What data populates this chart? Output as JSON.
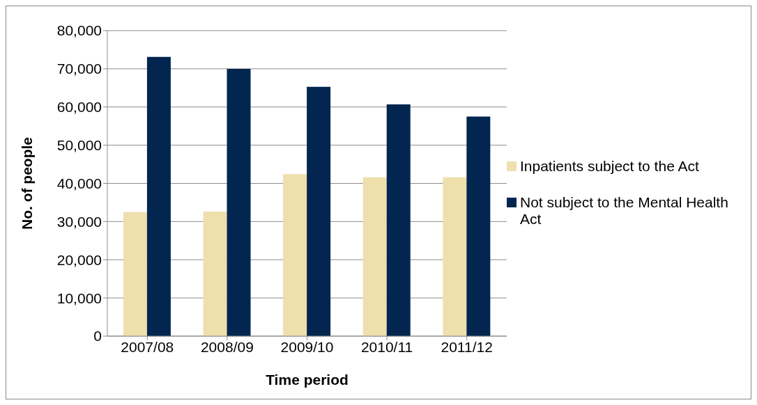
{
  "chart_data": {
    "type": "bar",
    "xlabel": "Time period",
    "ylabel": "No. of people",
    "categories": [
      "2007/08",
      "2008/09",
      "2009/10",
      "2010/11",
      "2011/12"
    ],
    "series": [
      {
        "name": "Inpatients subject to the Act",
        "color": "#efdfad",
        "values": [
          32500,
          32600,
          42400,
          41600,
          41600
        ]
      },
      {
        "name": "Not subject to the Mental Health Act",
        "color": "#02264f",
        "values": [
          73100,
          70000,
          65300,
          60700,
          57500
        ]
      }
    ],
    "ylim": [
      0,
      80000
    ],
    "yticks": [
      0,
      {
        "value": 10000,
        "label": "10,000"
      },
      {
        "value": 20000,
        "label": "20,000"
      },
      {
        "value": 30000,
        "label": "30,000"
      },
      {
        "value": 40000,
        "label": "40,000"
      },
      {
        "value": 50000,
        "label": "50,000"
      },
      {
        "value": 60000,
        "label": "60,000"
      },
      {
        "value": 70000,
        "label": "70,000"
      },
      {
        "value": 80000,
        "label": "80,000"
      }
    ],
    "grid": "y",
    "legend": "right"
  }
}
